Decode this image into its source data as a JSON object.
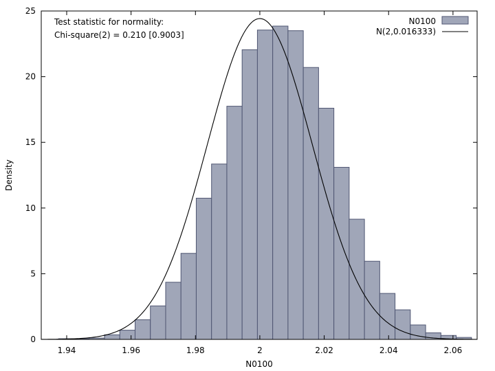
{
  "chart_data": {
    "type": "bar",
    "xlabel": "N0100",
    "ylabel": "Density",
    "xlim": [
      1.9321,
      2.0675
    ],
    "ylim": [
      0,
      25
    ],
    "xticks": [
      1.94,
      1.96,
      1.98,
      2.0,
      2.02,
      2.04,
      2.06
    ],
    "xtick_labels": [
      "1.94",
      "1.96",
      "1.98",
      "2",
      "2.02",
      "2.04",
      "2.06"
    ],
    "yticks": [
      0,
      5,
      10,
      15,
      20,
      25
    ],
    "ytick_labels": [
      "0",
      "5",
      "10",
      "15",
      "20",
      "25"
    ],
    "annotation": [
      "Test statistic for normality:",
      "Chi-square(2) = 0.210 [0.9003]"
    ],
    "legend_position": "top-right",
    "colors": {
      "bar_fill": "#a0a6b8",
      "bar_stroke": "#4f5672",
      "curve": "#000000",
      "axis": "#000000"
    },
    "series": [
      {
        "name": "N0100",
        "type": "histogram",
        "bin_width": 0.00475,
        "bin_start": 1.9375,
        "densities": [
          0.05,
          0.05,
          0.1,
          0.35,
          0.7,
          1.5,
          2.55,
          4.35,
          6.55,
          10.75,
          13.35,
          17.75,
          22.05,
          23.55,
          23.85,
          23.5,
          20.7,
          17.6,
          13.1,
          9.15,
          5.95,
          3.5,
          2.25,
          1.1,
          0.5,
          0.3,
          0.15
        ]
      },
      {
        "name": "N(2,0.016333)",
        "type": "normal_curve",
        "mean": 2,
        "sd": 0.016333
      }
    ]
  }
}
